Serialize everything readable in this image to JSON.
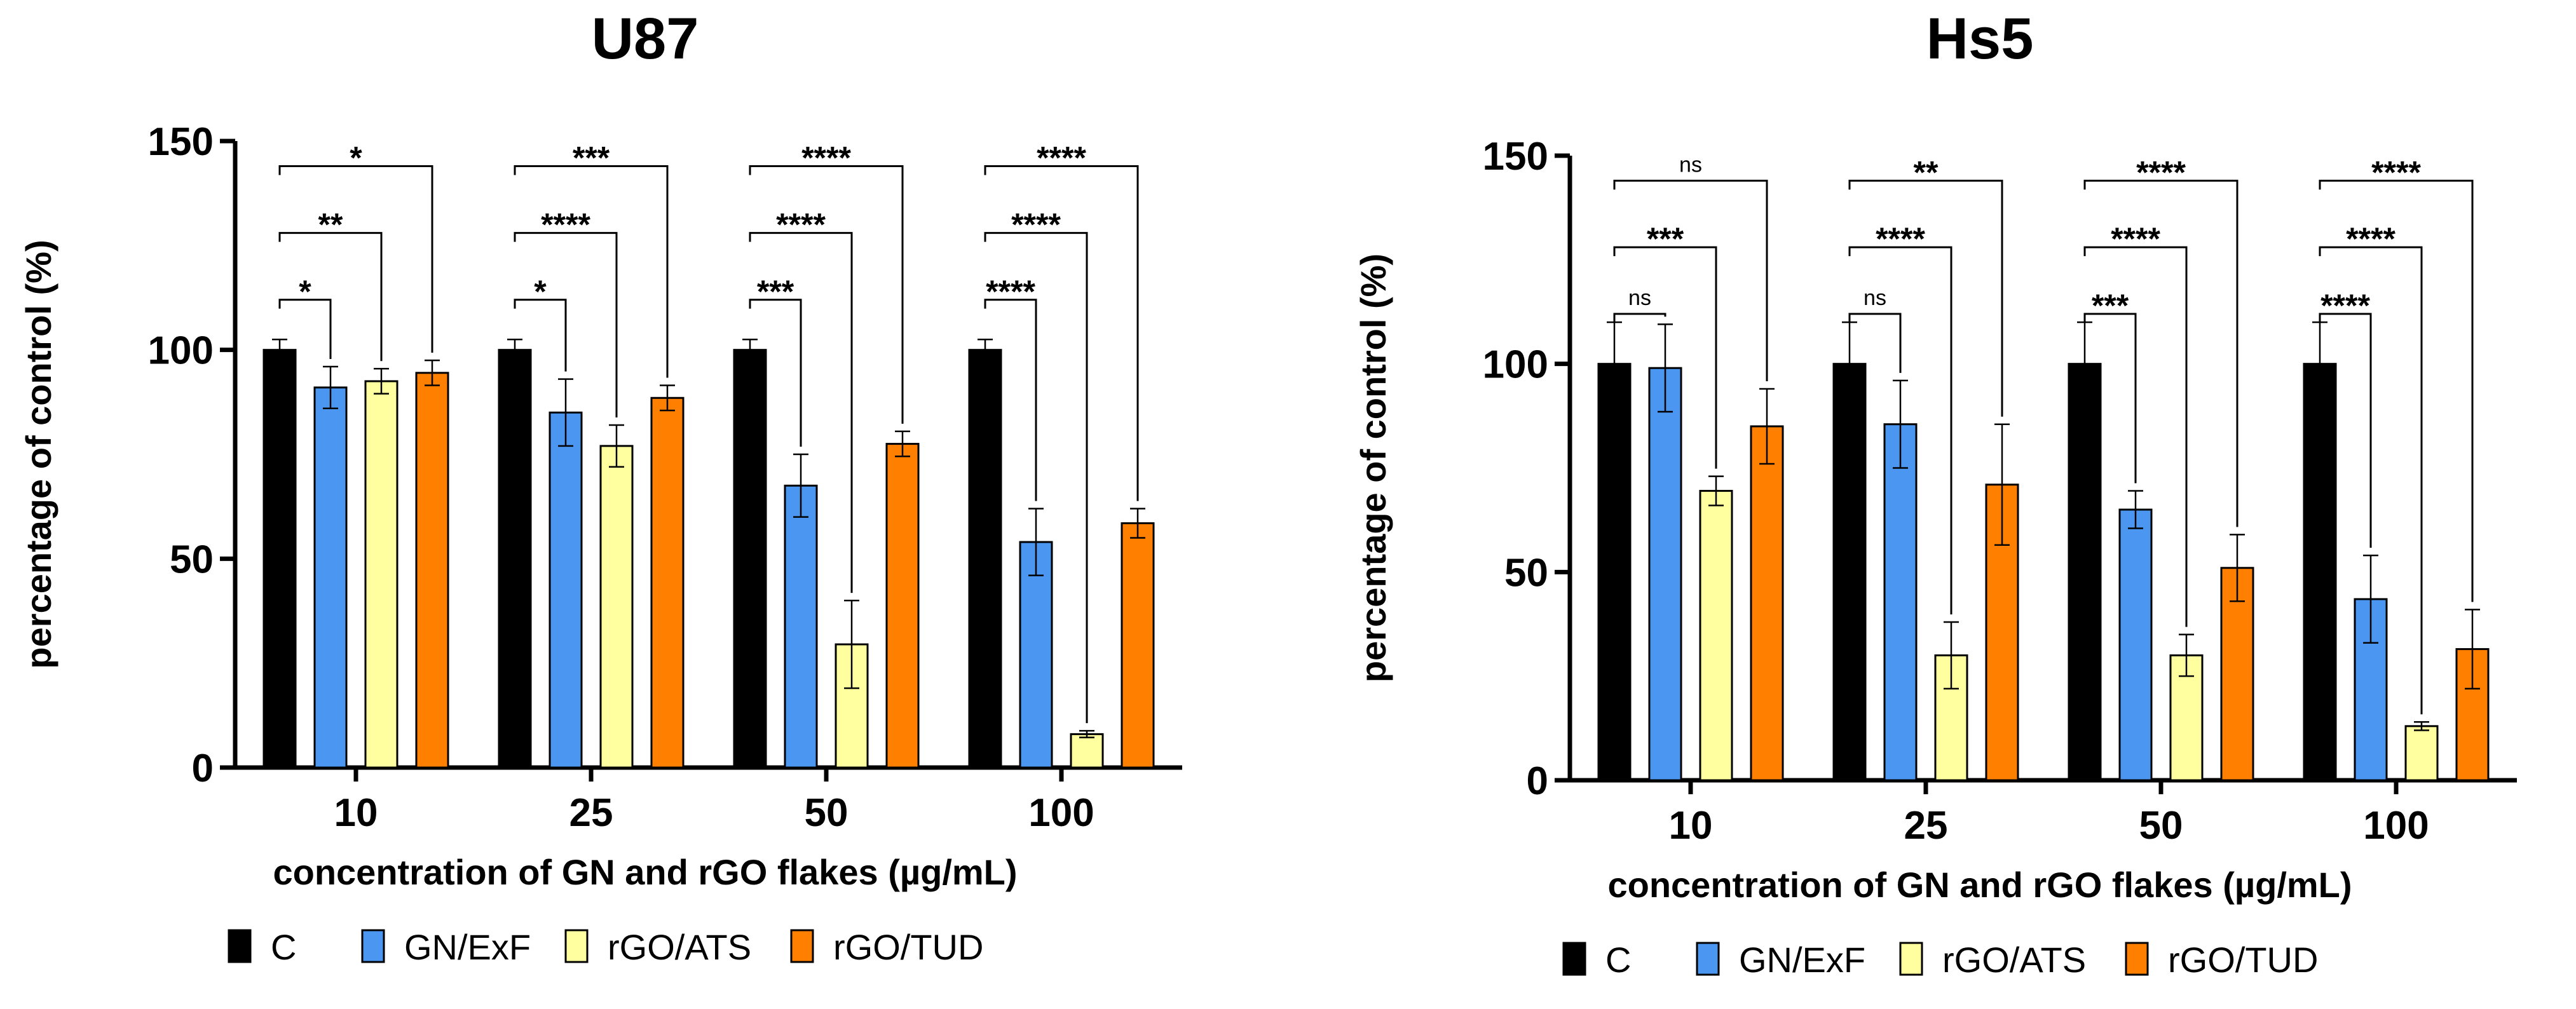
{
  "chart_data": [
    {
      "type": "bar",
      "title": "U87",
      "xlabel": "concentration of GN and rGO flakes (µg/mL)",
      "ylabel": "percentage of control (%)",
      "ylim": [
        0,
        150
      ],
      "yticks": [
        0,
        50,
        100,
        150
      ],
      "categories": [
        "10",
        "25",
        "50",
        "100"
      ],
      "series": [
        {
          "name": "C",
          "color": "#000000",
          "values": [
            100,
            100,
            100,
            100
          ],
          "errors": [
            2.5,
            2.5,
            2.5,
            2.5
          ]
        },
        {
          "name": "GN/ExF",
          "color": "#4a96f0",
          "values": [
            91,
            85,
            67.5,
            54
          ],
          "errors": [
            5,
            8,
            7.5,
            8
          ]
        },
        {
          "name": "rGO/ATS",
          "color": "#ffffa0",
          "values": [
            92.5,
            77,
            29.5,
            8
          ],
          "errors": [
            3,
            5,
            10.5,
            0.8
          ]
        },
        {
          "name": "rGO/TUD",
          "color": "#ff7f00",
          "values": [
            94.5,
            88.5,
            77.5,
            58.5
          ],
          "errors": [
            3,
            3,
            3,
            3.5
          ]
        }
      ],
      "significance": [
        [
          {
            "label": "*"
          },
          {
            "label": "**"
          },
          {
            "label": "*"
          }
        ],
        [
          {
            "label": "*"
          },
          {
            "label": "****"
          },
          {
            "label": "***"
          }
        ],
        [
          {
            "label": "***"
          },
          {
            "label": "****"
          },
          {
            "label": "****"
          }
        ],
        [
          {
            "label": "****"
          },
          {
            "label": "****"
          },
          {
            "label": "****"
          }
        ]
      ]
    },
    {
      "type": "bar",
      "title": "Hs5",
      "xlabel": "concentration of GN and rGO flakes (µg/mL)",
      "ylabel": "percentage of control (%)",
      "ylim": [
        0,
        150
      ],
      "yticks": [
        0,
        50,
        100,
        150
      ],
      "categories": [
        "10",
        "25",
        "50",
        "100"
      ],
      "series": [
        {
          "name": "C",
          "color": "#000000",
          "values": [
            100,
            100,
            100,
            100
          ],
          "errors": [
            10,
            10,
            10,
            10
          ]
        },
        {
          "name": "GN/ExF",
          "color": "#4a96f0",
          "values": [
            99,
            85.5,
            65,
            43.5
          ],
          "errors": [
            10.5,
            10.5,
            4.5,
            10.5
          ]
        },
        {
          "name": "rGO/ATS",
          "color": "#ffffa0",
          "values": [
            69.5,
            30,
            30,
            13
          ],
          "errors": [
            3.5,
            8,
            5,
            1
          ]
        },
        {
          "name": "rGO/TUD",
          "color": "#ff7f00",
          "values": [
            85,
            71,
            51,
            31.5
          ],
          "errors": [
            9,
            14.5,
            8,
            9.5
          ]
        }
      ],
      "significance": [
        [
          {
            "label": "ns"
          },
          {
            "label": "***"
          },
          {
            "label": "ns"
          }
        ],
        [
          {
            "label": "ns"
          },
          {
            "label": "****"
          },
          {
            "label": "**"
          }
        ],
        [
          {
            "label": "***"
          },
          {
            "label": "****"
          },
          {
            "label": "****"
          }
        ],
        [
          {
            "label": "****"
          },
          {
            "label": "****"
          },
          {
            "label": "****"
          }
        ]
      ]
    }
  ]
}
